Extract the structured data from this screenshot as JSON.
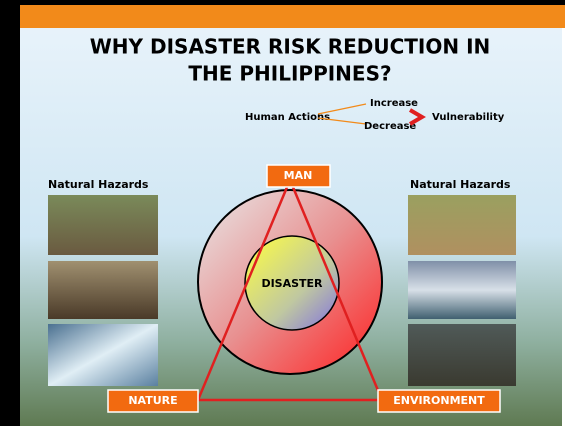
{
  "title": {
    "line1": "WHY  DISASTER RISK REDUCTION IN",
    "line2": "THE PHILIPPINES?"
  },
  "legend": {
    "source": "Human Actions",
    "up": "Increase",
    "down": "Decrease",
    "target": "Vulnerability"
  },
  "left_panel": {
    "title": "Natural Hazards"
  },
  "right_panel": {
    "title": "Natural Hazards"
  },
  "center": {
    "label": "DISASTER"
  },
  "vertices": {
    "top": "MAN",
    "left": "NATURE",
    "right": "ENVIRONMENT"
  }
}
